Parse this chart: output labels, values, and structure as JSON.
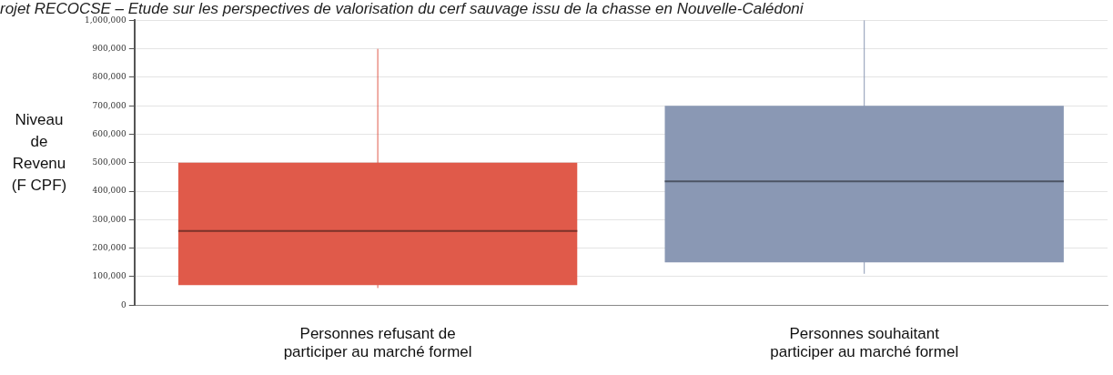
{
  "chart_data": {
    "type": "box",
    "title": "rojet RECOCSE – Etude sur les perspectives de valorisation du cerf sauvage issu de la chasse en Nouvelle-Calédoni",
    "ylabel": "Niveau de Revenu (F CPF)",
    "categories": [
      "Personnes refusant de participer au marché formel",
      "Personnes souhaitant participer au marché formel"
    ],
    "boxes": [
      {
        "low": 60000,
        "q1": 70000,
        "median": 260000,
        "q3": 500000,
        "high": 900000
      },
      {
        "low": 110000,
        "q1": 150000,
        "median": 435000,
        "q3": 700000,
        "high": 1000000
      }
    ],
    "colors": [
      "#e05a4a",
      "#8a98b4"
    ],
    "ylim": [
      0,
      1000000
    ],
    "yticks": [
      0,
      {
        "value": 100000,
        "label": "100,000"
      },
      {
        "value": 200000,
        "label": "200,000"
      },
      {
        "value": 300000,
        "label": "300,000"
      },
      {
        "value": 400000,
        "label": "400,000"
      },
      {
        "value": 500000,
        "label": "500,000"
      },
      {
        "value": 600000,
        "label": "600,000"
      },
      {
        "value": 700000,
        "label": "700,000"
      },
      {
        "value": 800000,
        "label": "800,000"
      },
      {
        "value": 900000,
        "label": "900,000"
      },
      {
        "value": 1000000,
        "label": "1,000,000"
      }
    ],
    "grid": "y"
  }
}
